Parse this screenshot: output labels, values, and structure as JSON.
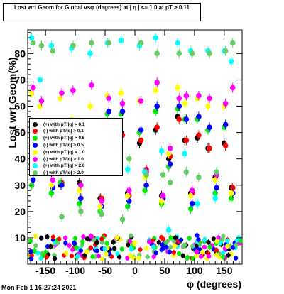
{
  "title": "Lost wrt Geom for Global vsφ (degrees) at | η | <= 1.0 at pT > 0.11",
  "footer": "Mon Feb  1 16:27:24 2021",
  "chart_data": {
    "type": "scatter",
    "xlabel": "φ (degrees)",
    "ylabel": "Lost wrt Geom(%)",
    "xlim": [
      -180,
      180
    ],
    "ylim": [
      0,
      89
    ],
    "x_ticks": [
      -150,
      -100,
      -50,
      0,
      50,
      100,
      150
    ],
    "y_ticks": [
      10,
      20,
      30,
      40,
      50,
      60,
      70,
      80
    ],
    "legend_position": "middle-left",
    "grid": false,
    "series": [
      {
        "name": "(+) with pT/|q| > 0.1",
        "color": "#000000",
        "x": [
          -172,
          -158,
          -139,
          -124,
          -105,
          -92,
          -74,
          -57,
          -45,
          -22,
          -11,
          9,
          18,
          36,
          46,
          58,
          73,
          85,
          95,
          106,
          124,
          136,
          151,
          163
        ],
        "y": [
          38,
          48,
          35,
          30,
          47,
          31,
          43,
          25,
          51,
          50,
          27,
          46,
          35,
          51,
          26,
          40,
          56,
          47,
          27,
          48,
          44,
          33,
          46,
          29
        ]
      },
      {
        "name": "(-) with pT/|q| > 0.1",
        "color": "#ff0000",
        "x": [
          -172,
          -158,
          -139,
          -124,
          -105,
          -92,
          -74,
          -57,
          -45,
          -22,
          -11,
          9,
          18,
          36,
          46,
          58,
          73,
          85,
          95,
          106,
          124,
          136,
          151,
          163
        ],
        "y": [
          37,
          49,
          36,
          31,
          48,
          30,
          43,
          25,
          51,
          49,
          26,
          47,
          36,
          52,
          26,
          41,
          55,
          47,
          27,
          49,
          44,
          34,
          45,
          29
        ]
      },
      {
        "name": "(+) with pT/|q| > 0.5",
        "color": "#00ee00",
        "x": [
          -172,
          -158,
          -139,
          -124,
          -105,
          -92,
          -74,
          -57,
          -45,
          -22,
          -11,
          9,
          18,
          36,
          46,
          58,
          73,
          85,
          95,
          106,
          124,
          136,
          151,
          163
        ],
        "y": [
          30,
          52,
          27,
          31,
          51,
          23,
          48,
          20,
          57,
          57,
          22,
          50,
          28,
          58,
          23,
          37,
          59,
          55,
          21,
          55,
          51,
          27,
          52,
          25
        ]
      },
      {
        "name": "(-) with pT/|q| > 0.5",
        "color": "#0000ff",
        "x": [
          -172,
          -158,
          -139,
          -124,
          -105,
          -92,
          -74,
          -57,
          -45,
          -22,
          -11,
          9,
          18,
          36,
          46,
          58,
          73,
          85,
          95,
          106,
          124,
          136,
          151,
          163
        ],
        "y": [
          32,
          53,
          29,
          30,
          52,
          25,
          49,
          22,
          58,
          58,
          24,
          51,
          30,
          60,
          25,
          38,
          60,
          55,
          23,
          56,
          52,
          29,
          53,
          27
        ]
      },
      {
        "name": "(+) with pT/|q| > 1.0",
        "color": "#ffff00",
        "x": [
          -172,
          -158,
          -139,
          -124,
          -105,
          -92,
          -74,
          -57,
          -45,
          -22,
          -11,
          9,
          18,
          36,
          46,
          58,
          73,
          85,
          95,
          106,
          124,
          136,
          151,
          163
        ],
        "y": [
          65,
          60,
          30,
          63,
          55,
          28,
          60,
          22,
          64,
          65,
          26,
          62,
          33,
          66,
          24,
          42,
          67,
          61,
          26,
          63,
          60,
          32,
          60,
          27
        ]
      },
      {
        "name": "(-) with pT/|q| > 1.0",
        "color": "#ff00ff",
        "x": [
          -172,
          -158,
          -139,
          -124,
          -105,
          -92,
          -74,
          -57,
          -45,
          -22,
          -11,
          9,
          18,
          36,
          46,
          58,
          73,
          85,
          95,
          106,
          124,
          136,
          151,
          163
        ],
        "y": [
          67,
          62,
          32,
          65,
          66,
          30,
          68,
          24,
          63,
          61,
          28,
          62,
          35,
          69,
          26,
          44,
          63,
          64,
          28,
          64,
          63,
          34,
          61,
          67
        ]
      },
      {
        "name": "(+) with pT/|q| > 2.0",
        "color": "#00ffff",
        "x": [
          -172,
          -158,
          -139,
          -124,
          -105,
          -92,
          -74,
          -57,
          -45,
          -22,
          -11,
          9,
          18,
          36,
          46,
          58,
          73,
          85,
          95,
          106,
          124,
          136,
          151,
          163
        ],
        "y": [
          86,
          70,
          83,
          46,
          82,
          42,
          80,
          41,
          84,
          85,
          36,
          83,
          35,
          86,
          43,
          13,
          84,
          42,
          81,
          23,
          81,
          25,
          81,
          77
        ]
      },
      {
        "name": "(-) with pT/|q| > 2.0",
        "color": "#66cc66",
        "x": [
          -172,
          -158,
          -139,
          -124,
          -105,
          -92,
          -74,
          -57,
          -45,
          -22,
          -11,
          9,
          18,
          36,
          46,
          58,
          73,
          85,
          95,
          106,
          124,
          136,
          151,
          163
        ],
        "y": [
          84,
          83,
          81,
          18,
          83,
          20,
          84,
          19,
          84,
          17,
          40,
          84,
          34,
          80,
          34,
          31,
          80,
          35,
          80,
          33,
          80,
          35,
          81,
          84
        ]
      }
    ],
    "baseline_band": {
      "x_start": -178,
      "x_end": 178,
      "y_min": 2,
      "y_max": 11
    }
  }
}
